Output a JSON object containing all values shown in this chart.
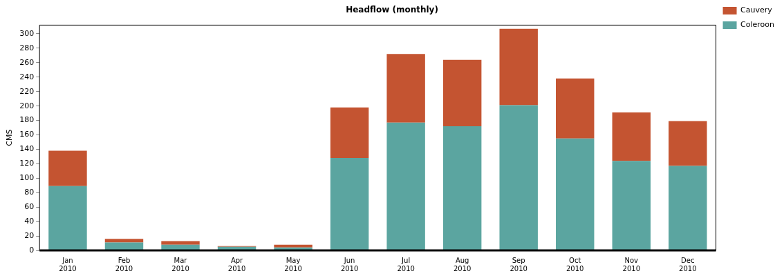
{
  "chart_data": {
    "type": "bar",
    "title": "Headflow (monthly)",
    "ylabel": "CMS",
    "categories": [
      "Jan 2010",
      "Feb 2010",
      "Mar 2010",
      "Apr 2010",
      "May 2010",
      "Jun 2010",
      "Jul 2010",
      "Aug 2010",
      "Sep 2010",
      "Oct 2010",
      "Nov 2010",
      "Dec 2010"
    ],
    "series": [
      {
        "name": "Coleroon",
        "color": "#5ba5a0",
        "values": [
          89,
          11,
          8,
          5,
          4,
          128,
          177,
          172,
          201,
          155,
          124,
          117
        ]
      },
      {
        "name": "Cauvery",
        "color": "#c45431",
        "values": [
          49,
          5,
          5,
          1,
          4,
          70,
          95,
          92,
          106,
          83,
          67,
          62
        ]
      }
    ],
    "stacked": true,
    "ylim": [
      0,
      312
    ],
    "yticks": [
      0,
      20,
      40,
      60,
      80,
      100,
      120,
      140,
      160,
      180,
      200,
      220,
      240,
      260,
      280,
      300
    ],
    "grid": false,
    "legend": "top right"
  }
}
